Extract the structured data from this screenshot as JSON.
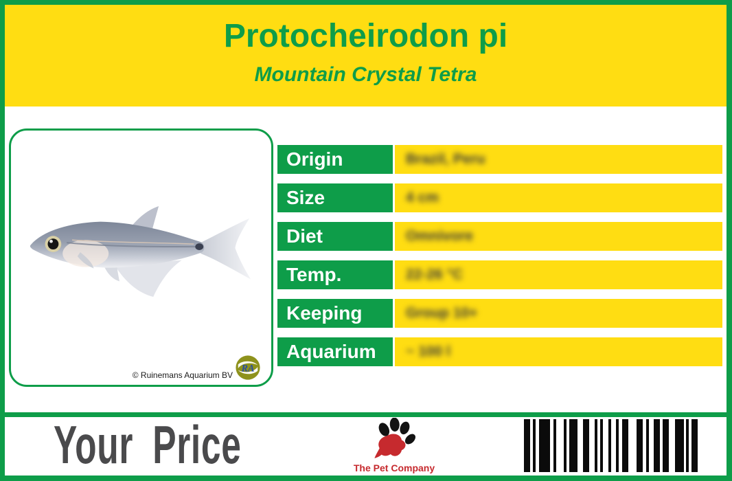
{
  "header": {
    "title": "Protocheirodon pi",
    "subtitle": "Mountain Crystal Tetra"
  },
  "photo": {
    "copyright": "© Ruinemans Aquarium BV",
    "supplier_monogram": "RA"
  },
  "info_table": {
    "rows": [
      {
        "label": "Origin",
        "value": "Brazil, Peru"
      },
      {
        "label": "Size",
        "value": "4 cm"
      },
      {
        "label": "Diet",
        "value": "Omnivore"
      },
      {
        "label": "Temp.",
        "value": "22-26 °C"
      },
      {
        "label": "Keeping",
        "value": "Group 10+"
      },
      {
        "label": "Aquarium",
        "value": "~ 100 l"
      }
    ]
  },
  "footer": {
    "price_label": "Your Price",
    "brand_name": "The Pet Company"
  },
  "colors": {
    "green": "#0E9D49",
    "yellow": "#FFDD12",
    "price_text": "#4A4A4C",
    "brand_red": "#C62A2E",
    "value_text": "#3A3A3A"
  },
  "barcode": {
    "bars": [
      [
        9,
        4
      ],
      [
        4,
        5
      ],
      [
        16,
        5
      ],
      [
        4,
        11
      ],
      [
        4,
        4
      ],
      [
        12,
        8
      ],
      [
        9,
        8
      ],
      [
        4,
        4
      ],
      [
        4,
        8
      ],
      [
        4,
        7
      ],
      [
        4,
        5
      ],
      [
        9,
        12
      ],
      [
        9,
        5
      ],
      [
        4,
        7
      ],
      [
        9,
        4
      ],
      [
        9,
        9
      ],
      [
        13,
        3
      ],
      [
        4,
        4
      ],
      [
        9,
        0
      ]
    ]
  }
}
